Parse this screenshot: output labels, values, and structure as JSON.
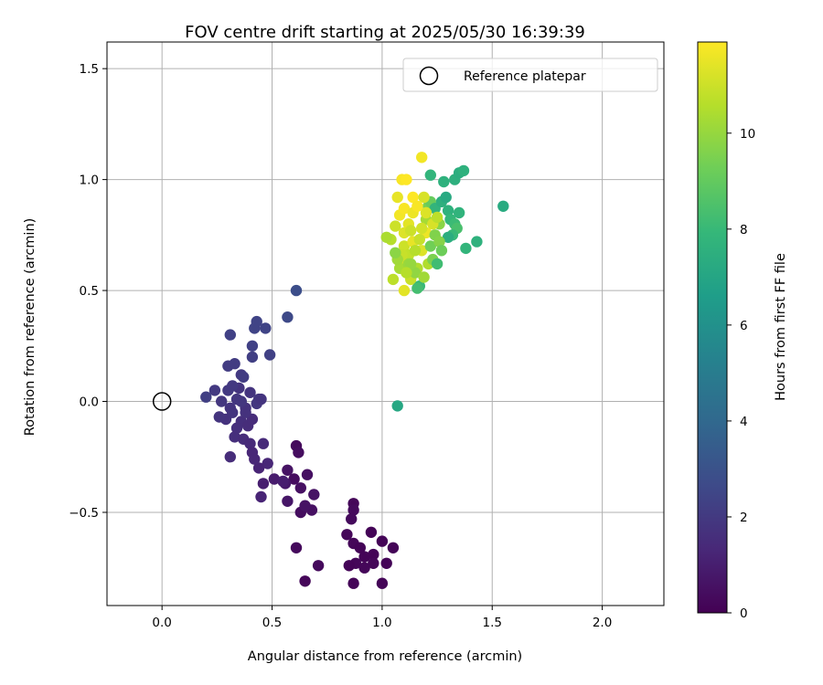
{
  "chart_data": {
    "type": "scatter",
    "title": "FOV centre drift starting at 2025/05/30 16:39:39",
    "xlabel": "Angular distance from reference (arcmin)",
    "ylabel": "Rotation from reference (arcmin)",
    "xlim": [
      -0.25,
      2.28
    ],
    "ylim": [
      -0.92,
      1.62
    ],
    "xticks": [
      0.0,
      0.5,
      1.0,
      1.5,
      2.0
    ],
    "xtick_labels": [
      "0.0",
      "0.5",
      "1.0",
      "1.5",
      "2.0"
    ],
    "yticks": [
      -0.5,
      0.0,
      0.5,
      1.0,
      1.5
    ],
    "ytick_labels": [
      "−0.5",
      "0.0",
      "0.5",
      "1.0",
      "1.5"
    ],
    "grid": true,
    "legend": {
      "placement": "top-right",
      "entries": [
        "Reference platepar"
      ]
    },
    "reference_point": {
      "x": 0.0,
      "y": 0.0,
      "label": "Reference platepar"
    },
    "colorbar": {
      "label": "Hours from first FF file",
      "colormap": "viridis",
      "min": 0,
      "max": 11.9,
      "ticks": [
        0,
        2,
        4,
        6,
        8,
        10
      ],
      "tick_labels": [
        "0",
        "2",
        "4",
        "6",
        "8",
        "10"
      ]
    },
    "colormap_stops": [
      "#440154",
      "#482878",
      "#3e4a89",
      "#31688e",
      "#26828e",
      "#1f9e89",
      "#35b779",
      "#6ece58",
      "#b5de2b",
      "#fde725"
    ],
    "points": [
      [
        0.61,
        -0.2,
        0.3
      ],
      [
        0.62,
        -0.23,
        0.4
      ],
      [
        0.66,
        -0.33,
        0.5
      ],
      [
        0.57,
        -0.31,
        0.6
      ],
      [
        0.6,
        -0.35,
        0.4
      ],
      [
        0.63,
        -0.39,
        0.5
      ],
      [
        0.69,
        -0.42,
        0.6
      ],
      [
        0.57,
        -0.45,
        0.7
      ],
      [
        0.63,
        -0.5,
        0.4
      ],
      [
        0.68,
        -0.49,
        0.5
      ],
      [
        0.65,
        -0.47,
        0.6
      ],
      [
        0.61,
        -0.66,
        0.3
      ],
      [
        0.65,
        -0.81,
        0.2
      ],
      [
        0.71,
        -0.74,
        0.3
      ],
      [
        0.56,
        -0.37,
        0.8
      ],
      [
        0.51,
        -0.35,
        0.9
      ],
      [
        0.55,
        -0.36,
        1.0
      ],
      [
        0.46,
        -0.37,
        1.0
      ],
      [
        0.45,
        -0.43,
        1.2
      ],
      [
        0.48,
        -0.28,
        1.3
      ],
      [
        0.46,
        -0.19,
        1.4
      ],
      [
        0.44,
        -0.3,
        1.2
      ],
      [
        0.84,
        -0.6,
        0.2
      ],
      [
        0.87,
        -0.46,
        0.2
      ],
      [
        0.87,
        -0.49,
        0.3
      ],
      [
        0.86,
        -0.53,
        0.3
      ],
      [
        0.87,
        -0.64,
        0.2
      ],
      [
        0.9,
        -0.66,
        0.1
      ],
      [
        0.92,
        -0.7,
        0.1
      ],
      [
        0.95,
        -0.59,
        0.1
      ],
      [
        0.88,
        -0.73,
        0.2
      ],
      [
        0.85,
        -0.74,
        0.1
      ],
      [
        0.92,
        -0.75,
        0.2
      ],
      [
        0.96,
        -0.69,
        0.1
      ],
      [
        1.0,
        -0.63,
        0.1
      ],
      [
        1.02,
        -0.73,
        0.1
      ],
      [
        1.05,
        -0.66,
        0.1
      ],
      [
        0.87,
        -0.82,
        0.1
      ],
      [
        1.0,
        -0.82,
        0.1
      ],
      [
        0.96,
        -0.73,
        0.2
      ],
      [
        0.31,
        -0.25,
        1.5
      ],
      [
        0.33,
        -0.16,
        1.6
      ],
      [
        0.37,
        -0.17,
        1.5
      ],
      [
        0.29,
        -0.08,
        1.7
      ],
      [
        0.32,
        -0.05,
        1.8
      ],
      [
        0.36,
        -0.09,
        1.6
      ],
      [
        0.39,
        -0.11,
        1.5
      ],
      [
        0.4,
        -0.19,
        1.4
      ],
      [
        0.41,
        -0.23,
        1.3
      ],
      [
        0.42,
        -0.26,
        1.3
      ],
      [
        0.38,
        -0.03,
        1.7
      ],
      [
        0.26,
        -0.07,
        1.8
      ],
      [
        0.34,
        -0.12,
        1.6
      ],
      [
        0.41,
        -0.08,
        1.5
      ],
      [
        0.27,
        0.0,
        1.9
      ],
      [
        0.24,
        0.05,
        2.0
      ],
      [
        0.3,
        0.05,
        2.0
      ],
      [
        0.34,
        0.01,
        1.9
      ],
      [
        0.35,
        0.06,
        1.8
      ],
      [
        0.4,
        0.04,
        1.8
      ],
      [
        0.44,
        0.01,
        1.9
      ],
      [
        0.43,
        -0.01,
        1.9
      ],
      [
        0.45,
        0.01,
        1.8
      ],
      [
        0.32,
        0.07,
        2.0
      ],
      [
        0.36,
        0.12,
        2.0
      ],
      [
        0.3,
        0.16,
        2.1
      ],
      [
        0.33,
        0.17,
        2.1
      ],
      [
        0.37,
        0.11,
        2.1
      ],
      [
        0.2,
        0.02,
        2.2
      ],
      [
        0.36,
        0.0,
        1.9
      ],
      [
        0.31,
        -0.03,
        1.8
      ],
      [
        0.38,
        -0.05,
        1.7
      ],
      [
        0.31,
        0.3,
        2.3
      ],
      [
        0.41,
        0.2,
        2.2
      ],
      [
        0.41,
        0.25,
        2.3
      ],
      [
        0.42,
        0.33,
        2.4
      ],
      [
        0.43,
        0.36,
        2.4
      ],
      [
        0.47,
        0.33,
        2.4
      ],
      [
        0.49,
        0.21,
        2.3
      ],
      [
        0.57,
        0.38,
        2.6
      ],
      [
        0.61,
        0.5,
        2.8
      ],
      [
        1.08,
        0.63,
        11.2
      ],
      [
        1.1,
        0.7,
        11.0
      ],
      [
        1.12,
        0.66,
        10.8
      ],
      [
        1.14,
        0.72,
        11.5
      ],
      [
        1.16,
        0.6,
        10.5
      ],
      [
        1.18,
        0.68,
        11.3
      ],
      [
        1.2,
        0.76,
        11.6
      ],
      [
        1.08,
        0.84,
        11.7
      ],
      [
        1.1,
        0.87,
        11.8
      ],
      [
        1.12,
        0.8,
        11.4
      ],
      [
        1.14,
        0.92,
        11.9
      ],
      [
        1.06,
        0.79,
        11.0
      ],
      [
        1.04,
        0.73,
        10.6
      ],
      [
        1.02,
        0.74,
        10.4
      ],
      [
        1.07,
        0.92,
        11.5
      ],
      [
        1.09,
        1.0,
        11.8
      ],
      [
        1.11,
        1.0,
        11.9
      ],
      [
        1.18,
        1.1,
        11.7
      ],
      [
        1.13,
        0.55,
        10.9
      ],
      [
        1.1,
        0.5,
        11.4
      ],
      [
        1.05,
        0.55,
        10.7
      ],
      [
        1.08,
        0.6,
        10.3
      ],
      [
        1.12,
        0.62,
        10.1
      ],
      [
        1.15,
        0.58,
        9.9
      ],
      [
        1.17,
        0.52,
        8.0
      ],
      [
        1.19,
        0.56,
        10.2
      ],
      [
        1.21,
        0.62,
        10.5
      ],
      [
        1.23,
        0.64,
        9.5
      ],
      [
        1.25,
        0.62,
        8.2
      ],
      [
        1.22,
        0.7,
        9.3
      ],
      [
        1.24,
        0.75,
        9.6
      ],
      [
        1.26,
        0.8,
        9.8
      ],
      [
        1.2,
        0.82,
        10.3
      ],
      [
        1.21,
        0.88,
        9.4
      ],
      [
        1.22,
        0.9,
        9.1
      ],
      [
        1.24,
        0.87,
        7.8
      ],
      [
        1.27,
        0.9,
        7.5
      ],
      [
        1.29,
        0.92,
        7.2
      ],
      [
        1.3,
        0.86,
        7.6
      ],
      [
        1.31,
        0.82,
        7.9
      ],
      [
        1.33,
        0.8,
        8.1
      ],
      [
        1.34,
        0.78,
        8.4
      ],
      [
        1.32,
        0.75,
        8.0
      ],
      [
        1.3,
        0.74,
        7.4
      ],
      [
        1.35,
        0.85,
        7.7
      ],
      [
        1.28,
        0.99,
        7.6
      ],
      [
        1.22,
        1.02,
        7.8
      ],
      [
        1.33,
        1.0,
        7.5
      ],
      [
        1.35,
        1.03,
        7.4
      ],
      [
        1.37,
        1.04,
        7.6
      ],
      [
        1.43,
        0.72,
        7.6
      ],
      [
        1.38,
        0.69,
        7.8
      ],
      [
        1.55,
        0.88,
        7.3
      ],
      [
        1.07,
        -0.02,
        7.1
      ],
      [
        1.16,
        0.51,
        8.3
      ],
      [
        1.13,
        0.62,
        10.0
      ],
      [
        1.15,
        0.68,
        10.6
      ],
      [
        1.17,
        0.73,
        10.9
      ],
      [
        1.18,
        0.78,
        11.1
      ],
      [
        1.2,
        0.85,
        11.3
      ],
      [
        1.14,
        0.85,
        11.6
      ],
      [
        1.16,
        0.88,
        11.8
      ],
      [
        1.19,
        0.92,
        11.2
      ],
      [
        1.1,
        0.76,
        11.3
      ],
      [
        1.13,
        0.77,
        11.0
      ],
      [
        1.09,
        0.66,
        10.9
      ],
      [
        1.11,
        0.58,
        10.6
      ],
      [
        1.07,
        0.64,
        10.2
      ],
      [
        1.06,
        0.67,
        9.8
      ],
      [
        1.23,
        0.8,
        11.2
      ],
      [
        1.25,
        0.83,
        10.7
      ],
      [
        1.26,
        0.72,
        9.7
      ],
      [
        1.27,
        0.68,
        9.2
      ]
    ]
  }
}
